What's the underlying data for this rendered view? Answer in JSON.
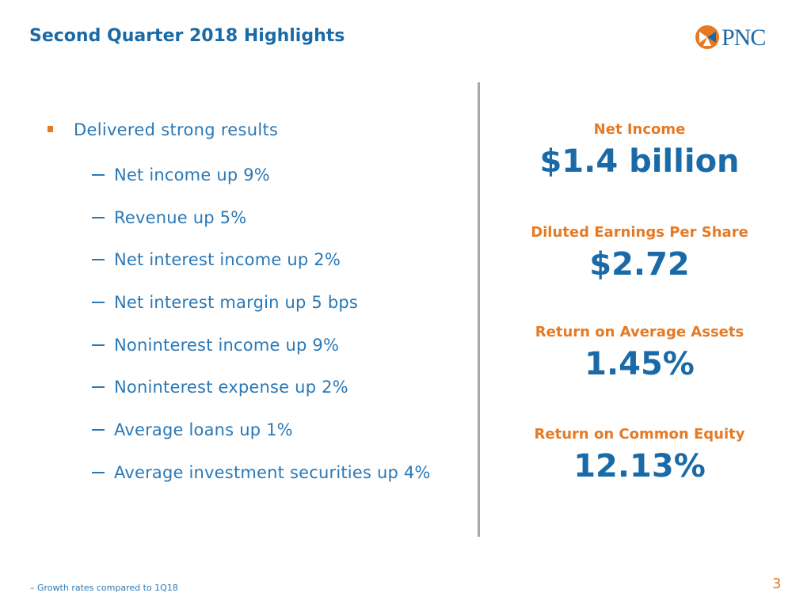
{
  "slide": {
    "title": "Second Quarter 2018 Highlights",
    "logo_text": "PNC",
    "colors": {
      "brand_blue": "#1a6aa8",
      "accent_orange": "#e57a25",
      "divider_gray": "#a8a8a8"
    }
  },
  "highlights": {
    "main_bullet": "Delivered strong results",
    "sub_bullets": [
      "Net income up 9%",
      "Revenue up 5%",
      "Net interest income up 2%",
      "Net interest margin up 5 bps",
      "Noninterest income up 9%",
      "Noninterest expense up 2%",
      "Average loans up 1%",
      "Average investment securities up 4%"
    ]
  },
  "metrics": [
    {
      "label": "Net Income",
      "value": "$1.4 billion"
    },
    {
      "label": "Diluted Earnings Per Share",
      "value": "$2.72"
    },
    {
      "label": "Return on Average Assets",
      "value": "1.45%"
    },
    {
      "label": "Return on Common Equity",
      "value": "12.13%"
    }
  ],
  "footer": {
    "footnote": "Growth rates compared to 1Q18",
    "page_number": "3"
  }
}
